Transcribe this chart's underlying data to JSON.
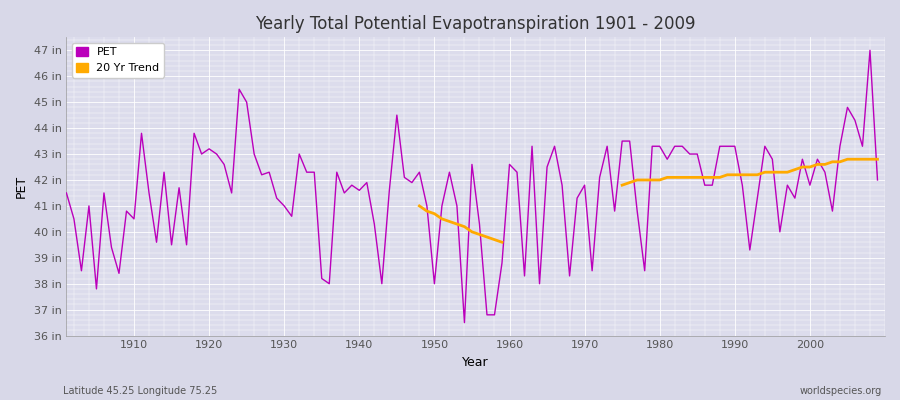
{
  "title": "Yearly Total Potential Evapotranspiration 1901 - 2009",
  "xlabel": "Year",
  "ylabel": "PET",
  "subtitle": "Latitude 45.25 Longitude 75.25",
  "watermark": "worldspecies.org",
  "ylim": [
    36,
    47.5
  ],
  "yticks": [
    36,
    37,
    38,
    39,
    40,
    41,
    42,
    43,
    44,
    45,
    46,
    47
  ],
  "ytick_labels": [
    "36 in",
    "37 in",
    "38 in",
    "39 in",
    "40 in",
    "41 in",
    "42 in",
    "43 in",
    "44 in",
    "45 in",
    "46 in",
    "47 in"
  ],
  "xticks": [
    1910,
    1920,
    1930,
    1940,
    1950,
    1960,
    1970,
    1980,
    1990,
    2000
  ],
  "fig_bg_color": "#d8d8e8",
  "plot_bg_color": "#dcdcec",
  "pet_color": "#bb00bb",
  "trend_color": "#ffaa00",
  "pet_linewidth": 1.0,
  "trend_linewidth": 2.0,
  "years": [
    1901,
    1902,
    1903,
    1904,
    1905,
    1906,
    1907,
    1908,
    1909,
    1910,
    1911,
    1912,
    1913,
    1914,
    1915,
    1916,
    1917,
    1918,
    1919,
    1920,
    1921,
    1922,
    1923,
    1924,
    1925,
    1926,
    1927,
    1928,
    1929,
    1930,
    1931,
    1932,
    1933,
    1934,
    1935,
    1936,
    1937,
    1938,
    1939,
    1940,
    1941,
    1942,
    1943,
    1944,
    1945,
    1946,
    1947,
    1948,
    1949,
    1950,
    1951,
    1952,
    1953,
    1954,
    1955,
    1956,
    1957,
    1958,
    1959,
    1960,
    1961,
    1962,
    1963,
    1964,
    1965,
    1966,
    1967,
    1968,
    1969,
    1970,
    1971,
    1972,
    1973,
    1974,
    1975,
    1976,
    1977,
    1978,
    1979,
    1980,
    1981,
    1982,
    1983,
    1984,
    1985,
    1986,
    1987,
    1988,
    1989,
    1990,
    1991,
    1992,
    1993,
    1994,
    1995,
    1996,
    1997,
    1998,
    1999,
    2000,
    2001,
    2002,
    2003,
    2004,
    2005,
    2006,
    2007,
    2008,
    2009
  ],
  "pet_values": [
    41.5,
    40.5,
    38.5,
    41.0,
    37.8,
    41.5,
    39.4,
    38.4,
    40.8,
    40.5,
    43.8,
    41.5,
    39.6,
    42.3,
    39.5,
    41.7,
    39.5,
    43.8,
    43.0,
    43.2,
    43.0,
    42.6,
    41.5,
    45.5,
    45.0,
    43.0,
    42.2,
    42.3,
    41.3,
    41.0,
    40.6,
    43.0,
    42.3,
    42.3,
    38.2,
    38.0,
    42.3,
    41.5,
    41.8,
    41.6,
    41.9,
    40.3,
    38.0,
    41.6,
    44.5,
    42.1,
    41.9,
    42.3,
    41.0,
    38.0,
    41.0,
    42.3,
    41.0,
    36.5,
    42.6,
    40.3,
    36.8,
    36.8,
    38.8,
    42.6,
    42.3,
    38.3,
    43.3,
    38.0,
    42.5,
    43.3,
    41.8,
    38.3,
    41.3,
    41.8,
    38.5,
    42.1,
    43.3,
    40.8,
    43.5,
    43.5,
    40.8,
    38.5,
    43.3,
    43.3,
    42.8,
    43.3,
    43.3,
    43.0,
    43.0,
    41.8,
    41.8,
    43.3,
    43.3,
    43.3,
    41.8,
    39.3,
    41.3,
    43.3,
    42.8,
    40.0,
    41.8,
    41.3,
    42.8,
    41.8,
    42.8,
    42.3,
    40.8,
    43.3,
    44.8,
    44.3,
    43.3,
    47.0,
    42.0
  ],
  "trend_segments": [
    {
      "years": [
        1948,
        1949,
        1950,
        1951,
        1952,
        1953,
        1954,
        1955,
        1956,
        1957,
        1958,
        1959
      ],
      "values": [
        41.0,
        40.8,
        40.7,
        40.5,
        40.4,
        40.3,
        40.2,
        40.0,
        39.9,
        39.8,
        39.7,
        39.6
      ]
    },
    {
      "years": [
        1975,
        1976,
        1977,
        1978,
        1979,
        1980,
        1981,
        1982,
        1983,
        1984,
        1985,
        1986,
        1987,
        1988,
        1989,
        1990,
        1991,
        1992,
        1993,
        1994,
        1995,
        1996,
        1997,
        1998,
        1999,
        2000,
        2001,
        2002,
        2003,
        2004,
        2005,
        2006,
        2007,
        2008,
        2009
      ],
      "values": [
        41.8,
        41.9,
        42.0,
        42.0,
        42.0,
        42.0,
        42.1,
        42.1,
        42.1,
        42.1,
        42.1,
        42.1,
        42.1,
        42.1,
        42.2,
        42.2,
        42.2,
        42.2,
        42.2,
        42.3,
        42.3,
        42.3,
        42.3,
        42.4,
        42.5,
        42.5,
        42.6,
        42.6,
        42.7,
        42.7,
        42.8,
        42.8,
        42.8,
        42.8,
        42.8
      ]
    }
  ]
}
